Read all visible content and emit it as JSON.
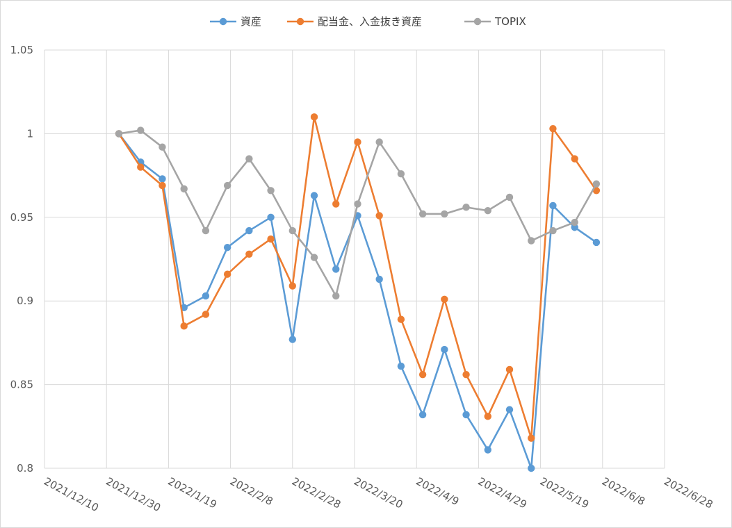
{
  "chart_data": {
    "type": "line",
    "title": "",
    "xlabel": "",
    "ylabel": "",
    "ylim": [
      0.8,
      1.05
    ],
    "xlim": [
      "2021/12/10",
      "2022/6/28"
    ],
    "grid": true,
    "legend_position": "top",
    "y_ticks": [
      "1.05",
      "1",
      "0.95",
      "0.9",
      "0.85",
      "0.8"
    ],
    "x_ticks": [
      "2021/12/10",
      "2021/12/30",
      "2022/1/19",
      "2022/2/8",
      "2022/2/28",
      "2022/3/20",
      "2022/4/9",
      "2022/4/29",
      "2022/5/19",
      "2022/6/8",
      "2022/6/28"
    ],
    "x": [
      "2022/1/3",
      "2022/1/10",
      "2022/1/17",
      "2022/1/24",
      "2022/1/31",
      "2022/2/7",
      "2022/2/14",
      "2022/2/21",
      "2022/2/28",
      "2022/3/7",
      "2022/3/14",
      "2022/3/21",
      "2022/3/28",
      "2022/4/4",
      "2022/4/11",
      "2022/4/18",
      "2022/4/25",
      "2022/5/2",
      "2022/5/9",
      "2022/5/16",
      "2022/5/23",
      "2022/5/30",
      "2022/6/6"
    ],
    "series": [
      {
        "name": "資産",
        "color": "#5b9bd5",
        "values": [
          1.0,
          0.983,
          0.973,
          0.896,
          0.903,
          0.932,
          0.942,
          0.95,
          0.877,
          0.963,
          0.919,
          0.951,
          0.913,
          0.861,
          0.832,
          0.871,
          0.832,
          0.811,
          0.835,
          0.8,
          0.957,
          0.944,
          0.935
        ]
      },
      {
        "name": "配当金、入金抜き資産",
        "color": "#ed7d31",
        "values": [
          1.0,
          0.98,
          0.969,
          0.885,
          0.892,
          0.916,
          0.928,
          0.937,
          0.909,
          1.01,
          0.958,
          0.995,
          0.951,
          0.889,
          0.856,
          0.901,
          0.856,
          0.831,
          0.859,
          0.818,
          1.003,
          0.985,
          0.966
        ]
      },
      {
        "name": "TOPIX",
        "color": "#a5a5a5",
        "values": [
          1.0,
          1.002,
          0.992,
          0.967,
          0.942,
          0.969,
          0.985,
          0.966,
          0.942,
          0.926,
          0.903,
          0.958,
          0.995,
          0.976,
          0.952,
          0.952,
          0.956,
          0.954,
          0.962,
          0.936,
          0.942,
          0.947,
          0.97
        ]
      }
    ]
  }
}
